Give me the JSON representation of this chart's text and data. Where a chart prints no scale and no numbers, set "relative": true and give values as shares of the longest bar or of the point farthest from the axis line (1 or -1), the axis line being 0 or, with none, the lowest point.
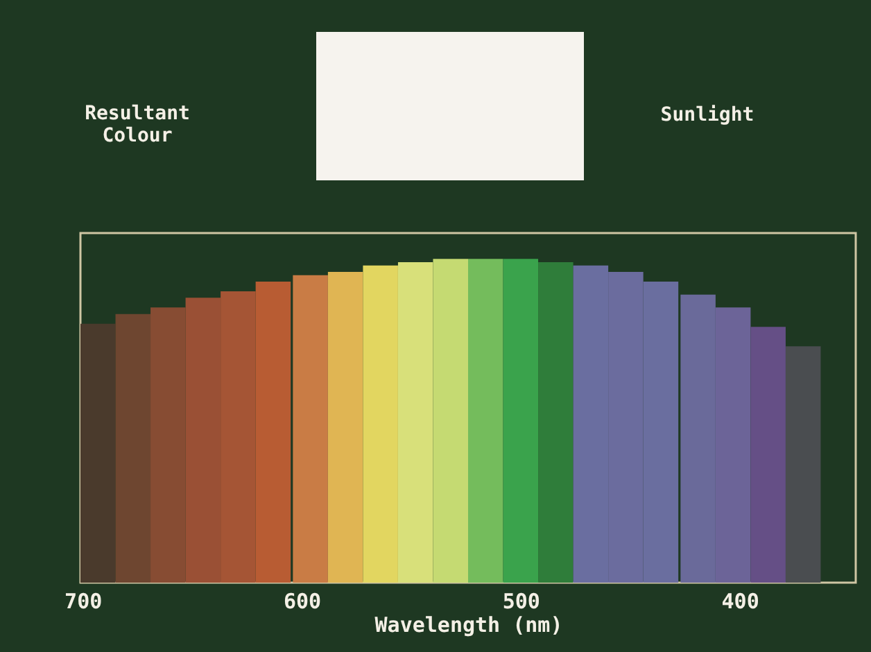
{
  "chart_data": {
    "type": "bar",
    "relative": true,
    "xlabel": "Wavelength (nm)",
    "annotations": [
      "Resultant Colour",
      "Sunlight"
    ],
    "x": [
      693,
      677,
      661,
      645,
      629,
      613,
      596,
      580,
      564,
      548,
      532,
      516,
      500,
      484,
      468,
      452,
      436,
      419,
      403,
      387,
      371
    ],
    "values": [
      0.8,
      0.83,
      0.85,
      0.88,
      0.9,
      0.93,
      0.95,
      0.96,
      0.98,
      0.99,
      1,
      1,
      1,
      0.99,
      0.98,
      0.96,
      0.93,
      0.89,
      0.85,
      0.79,
      0.73
    ],
    "colors": [
      "#4a3a2c",
      "#6e4630",
      "#874c33",
      "#9a5035",
      "#a55535",
      "#b85c33",
      "#c97c45",
      "#e0b553",
      "#e2d660",
      "#d8e07a",
      "#c5da72",
      "#74bc5c",
      "#3aa34c",
      "#2f7d3a",
      "#6a6ea0",
      "#6b6c9e",
      "#6a6e9f",
      "#6a6a9a",
      "#6c6498",
      "#654f86",
      "#4a4d50"
    ],
    "xlim": [
      701,
      347
    ],
    "xticks": [
      700,
      600,
      500,
      400
    ],
    "grid": false
  }
}
